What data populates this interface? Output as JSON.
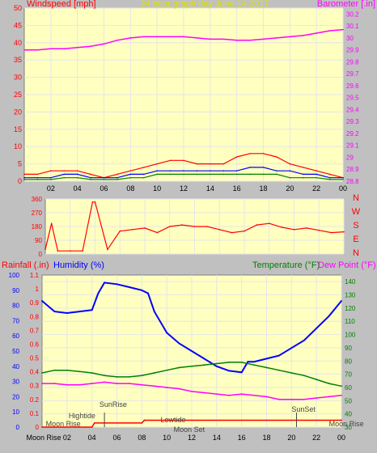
{
  "colors": {
    "background": "#c0c0c0",
    "plot_bg": "#ffffc0",
    "grid": "#e6e6e6",
    "wind": "#ff0000",
    "gust_mid": "#0000ff",
    "gust_low": "#008000",
    "barometer": "#ff00ff",
    "direction": "#ff0000",
    "rainfall": "#ff0000",
    "humidity": "#0000ff",
    "temperature": "#008000",
    "dewpoint": "#ff00ff",
    "title": "#e0e000",
    "axis_text": "#000000",
    "annotation": "#444444"
  },
  "chart_data": [
    {
      "type": "line",
      "title": "24 hour graph day   June 14 2017",
      "left_label": "Windspeed [mph]",
      "right_label": "Barometer [.in]",
      "x_ticks": [
        "02",
        "04",
        "06",
        "08",
        "10",
        "12",
        "14",
        "16",
        "18",
        "20",
        "22",
        "00"
      ],
      "xlim_hours": [
        0,
        24
      ],
      "ylim_left": [
        0,
        50
      ],
      "y_ticks_left": [
        "0",
        "5",
        "10",
        "15",
        "20",
        "25",
        "30",
        "35",
        "40",
        "45",
        "50"
      ],
      "ylim_right": [
        28.8,
        30.25
      ],
      "y_ticks_right": [
        "28.8",
        "28.9",
        "29",
        "29.1",
        "29.2",
        "29.3",
        "29.4",
        "29.5",
        "29.6",
        "29.7",
        "29.8",
        "29.9",
        "30",
        "30.1",
        "30.2"
      ],
      "series": [
        {
          "key": "barometer",
          "axis": "right",
          "x": [
            0,
            1,
            2,
            3,
            4,
            5,
            6,
            7,
            8,
            9,
            10,
            11,
            12,
            13,
            14,
            15,
            16,
            17,
            18,
            19,
            20,
            21,
            22,
            23,
            24
          ],
          "y": [
            29.9,
            29.9,
            29.91,
            29.91,
            29.92,
            29.93,
            29.95,
            29.98,
            30.0,
            30.01,
            30.01,
            30.01,
            30.01,
            30.0,
            29.99,
            29.99,
            29.98,
            29.98,
            29.99,
            30.0,
            30.01,
            30.02,
            30.04,
            30.06,
            30.07
          ]
        },
        {
          "key": "wind",
          "axis": "left",
          "x": [
            0,
            1,
            2,
            3,
            4,
            5,
            6,
            7,
            8,
            9,
            10,
            11,
            12,
            13,
            14,
            15,
            16,
            17,
            18,
            19,
            20,
            21,
            22,
            23,
            24
          ],
          "y": [
            2,
            2,
            3,
            3,
            3,
            2,
            1,
            2,
            3,
            4,
            5,
            6,
            6,
            5,
            5,
            5,
            7,
            8,
            8,
            7,
            5,
            4,
            3,
            2,
            1
          ]
        },
        {
          "key": "gust_mid",
          "axis": "left",
          "x": [
            0,
            1,
            2,
            3,
            4,
            5,
            6,
            7,
            8,
            9,
            10,
            11,
            12,
            13,
            14,
            15,
            16,
            17,
            18,
            19,
            20,
            21,
            22,
            23,
            24
          ],
          "y": [
            1,
            1,
            1,
            2,
            2,
            1,
            1,
            1,
            2,
            2,
            3,
            3,
            3,
            3,
            3,
            3,
            3,
            4,
            4,
            3,
            3,
            2,
            2,
            1,
            1
          ]
        },
        {
          "key": "gust_low",
          "axis": "left",
          "x": [
            0,
            1,
            2,
            3,
            4,
            5,
            6,
            7,
            8,
            9,
            10,
            11,
            12,
            13,
            14,
            15,
            16,
            17,
            18,
            19,
            20,
            21,
            22,
            23,
            24
          ],
          "y": [
            0.5,
            0.5,
            0.5,
            1,
            1,
            0.5,
            0.5,
            0.5,
            1,
            1,
            2,
            2,
            2,
            2,
            2,
            2,
            2,
            2,
            2,
            2,
            1,
            1,
            1,
            0.5,
            0.5
          ]
        }
      ]
    },
    {
      "type": "line",
      "right_label": "N W S E N",
      "right_letters": [
        "N",
        "W",
        "S",
        "E",
        "N"
      ],
      "x_ticks": [],
      "xlim_hours": [
        0,
        24
      ],
      "ylim": [
        0,
        360
      ],
      "y_ticks": [
        "0",
        "90",
        "180",
        "270",
        "360"
      ],
      "series": [
        {
          "key": "direction",
          "x": [
            0,
            0.5,
            1,
            2,
            3,
            3.8,
            4,
            5,
            6,
            7,
            8,
            9,
            10,
            11,
            12,
            13,
            14,
            15,
            16,
            17,
            18,
            19,
            20,
            21,
            22,
            23,
            24
          ],
          "y": [
            30,
            200,
            20,
            20,
            20,
            340,
            340,
            30,
            150,
            160,
            170,
            140,
            180,
            190,
            180,
            180,
            160,
            140,
            150,
            190,
            200,
            175,
            160,
            170,
            155,
            140,
            145
          ]
        }
      ]
    },
    {
      "type": "line",
      "left_label_1": "Rainfall (.in)",
      "left_label_2": "Humidity (%)",
      "right_label_1": "Temperature (°F)",
      "right_label_2": "Dew Point (°F)",
      "x_ticks": [
        "Moon Rise",
        "02",
        "04",
        "06",
        "08",
        "10",
        "12",
        "14",
        "16",
        "18",
        "20",
        "22",
        "00"
      ],
      "xlim_hours": [
        0,
        24
      ],
      "ylim_rain": [
        0,
        1.1
      ],
      "y_ticks_rain": [
        "0",
        "0.1",
        "0.2",
        "0.3",
        "0.4",
        "0.5",
        "0.6",
        "0.7",
        "0.8",
        "0.9",
        "1",
        "1.1"
      ],
      "ylim_humidity": [
        0,
        100
      ],
      "y_ticks_humidity": [
        "0",
        "10",
        "20",
        "30",
        "40",
        "50",
        "60",
        "70",
        "80",
        "90",
        "100"
      ],
      "ylim_temp": [
        30,
        145
      ],
      "y_ticks_temp": [
        "30",
        "40",
        "50",
        "60",
        "70",
        "80",
        "90",
        "100",
        "110",
        "120",
        "130",
        "140"
      ],
      "annotations": [
        "Moon Rise",
        "Hightide",
        "SunRise",
        "Lowtide",
        "Moon Set",
        "SunSet",
        "Moon Rise"
      ],
      "series": [
        {
          "key": "humidity",
          "axis": "humidity",
          "x": [
            0,
            1,
            2,
            3,
            4,
            4.5,
            5,
            6,
            7,
            8,
            8.5,
            9,
            10,
            11,
            12,
            13,
            14,
            15,
            16,
            16.5,
            17,
            18,
            19,
            20,
            21,
            22,
            23,
            24
          ],
          "y": [
            83,
            76,
            75,
            76,
            77,
            88,
            95,
            94,
            92,
            90,
            88,
            76,
            62,
            55,
            50,
            45,
            40,
            37,
            36,
            43,
            43,
            45,
            47,
            52,
            57,
            65,
            73,
            83
          ]
        },
        {
          "key": "temperature",
          "axis": "temp",
          "x": [
            0,
            1,
            2,
            3,
            4,
            5,
            6,
            7,
            8,
            9,
            10,
            11,
            12,
            13,
            14,
            15,
            16,
            17,
            18,
            19,
            20,
            21,
            22,
            23,
            24
          ],
          "y": [
            71,
            73,
            73,
            72,
            71,
            69,
            68,
            68,
            69,
            71,
            73,
            75,
            76,
            77,
            78,
            79,
            79,
            77,
            75,
            73,
            71,
            69,
            66,
            63,
            61
          ]
        },
        {
          "key": "dewpoint",
          "axis": "temp",
          "x": [
            0,
            1,
            2,
            3,
            4,
            5,
            6,
            7,
            8,
            9,
            10,
            11,
            12,
            13,
            14,
            15,
            16,
            17,
            18,
            19,
            20,
            21,
            22,
            23,
            24
          ],
          "y": [
            63,
            63,
            62,
            62,
            63,
            64,
            63,
            63,
            62,
            61,
            60,
            59,
            57,
            56,
            55,
            54,
            55,
            54,
            53,
            51,
            51,
            51,
            52,
            53,
            54
          ]
        },
        {
          "key": "rainfall",
          "axis": "rain",
          "x": [
            0,
            4.0,
            4.2,
            8.0,
            8.2,
            24
          ],
          "y": [
            0,
            0,
            0.03,
            0.03,
            0.05,
            0.05
          ]
        }
      ]
    }
  ]
}
